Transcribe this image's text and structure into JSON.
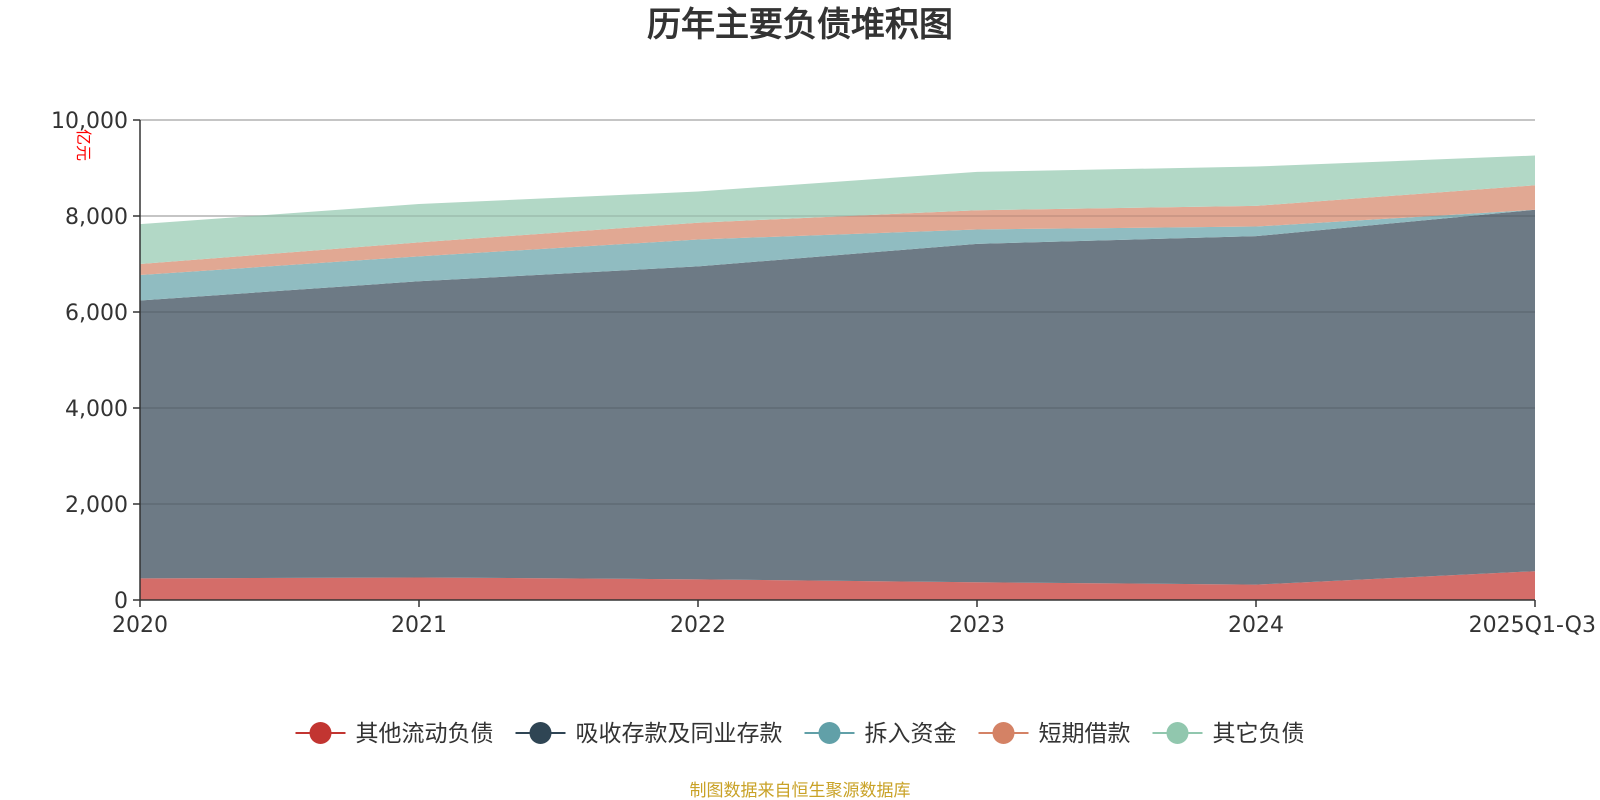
{
  "chart_data": {
    "type": "area",
    "stacked": true,
    "title": "历年主要负债堆积图",
    "ylabel": "亿元",
    "xlabel": "",
    "categories": [
      "2020",
      "2021",
      "2022",
      "2023",
      "2024",
      "2025Q1-Q3"
    ],
    "ylim": [
      0,
      10000
    ],
    "yticks": [
      0,
      2000,
      4000,
      6000,
      8000,
      10000
    ],
    "ytick_labels": [
      "0",
      "2,000",
      "4,000",
      "6,000",
      "8,000",
      "10,000"
    ],
    "grid": true,
    "legend_position": "bottom",
    "series": [
      {
        "name": "其他流动负债",
        "color": "#c23531",
        "fill": "#d46d69",
        "values": [
          450,
          470,
          430,
          370,
          320,
          600
        ]
      },
      {
        "name": "吸收存款及同业存款",
        "color": "#2f4554",
        "fill": "#6d7a85",
        "values": [
          5790,
          6170,
          6520,
          7050,
          7260,
          7530
        ]
      },
      {
        "name": "拆入资金",
        "color": "#61a0a8",
        "fill": "#90bcc1",
        "values": [
          530,
          520,
          560,
          300,
          200,
          0
        ]
      },
      {
        "name": "短期借款",
        "color": "#d48265",
        "fill": "#e1a893",
        "values": [
          230,
          290,
          350,
          400,
          430,
          510
        ]
      },
      {
        "name": "其它负债",
        "color": "#91c7ae",
        "fill": "#b2d8c6",
        "values": [
          830,
          800,
          650,
          800,
          820,
          620
        ]
      }
    ],
    "source": "制图数据来自恒生聚源数据库"
  }
}
